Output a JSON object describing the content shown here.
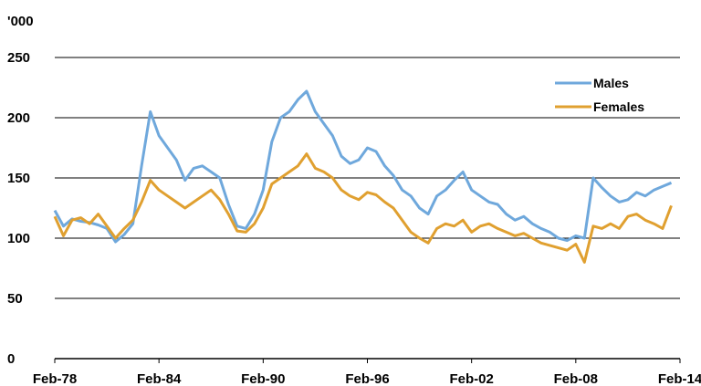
{
  "chart_data": {
    "type": "line",
    "unit_label": "'000",
    "xlabel": "",
    "ylabel": "",
    "ylim": [
      0,
      250
    ],
    "yticks": [
      0,
      50,
      100,
      150,
      200,
      250
    ],
    "xlim": [
      "1978-02",
      "2014-02"
    ],
    "xticks": [
      "Feb-78",
      "Feb-84",
      "Feb-90",
      "Feb-96",
      "Feb-02",
      "Feb-08",
      "Feb-14"
    ],
    "grid": "horizontal",
    "legend_position": "top-right",
    "series": [
      {
        "name": "Males",
        "color": "#6fa8dc",
        "points": [
          [
            "1978-02",
            123
          ],
          [
            "1978-08",
            110
          ],
          [
            "1979-02",
            116
          ],
          [
            "1979-08",
            114
          ],
          [
            "1980-02",
            113
          ],
          [
            "1980-08",
            111
          ],
          [
            "1981-02",
            108
          ],
          [
            "1981-08",
            97
          ],
          [
            "1982-02",
            103
          ],
          [
            "1982-08",
            112
          ],
          [
            "1983-02",
            160
          ],
          [
            "1983-08",
            205
          ],
          [
            "1984-02",
            185
          ],
          [
            "1984-08",
            175
          ],
          [
            "1985-02",
            165
          ],
          [
            "1985-08",
            148
          ],
          [
            "1986-02",
            158
          ],
          [
            "1986-08",
            160
          ],
          [
            "1987-02",
            155
          ],
          [
            "1987-08",
            150
          ],
          [
            "1988-02",
            128
          ],
          [
            "1988-08",
            110
          ],
          [
            "1989-02",
            108
          ],
          [
            "1989-08",
            120
          ],
          [
            "1990-02",
            140
          ],
          [
            "1990-08",
            180
          ],
          [
            "1991-02",
            200
          ],
          [
            "1991-08",
            205
          ],
          [
            "1992-02",
            215
          ],
          [
            "1992-08",
            222
          ],
          [
            "1993-02",
            205
          ],
          [
            "1993-08",
            195
          ],
          [
            "1994-02",
            185
          ],
          [
            "1994-08",
            168
          ],
          [
            "1995-02",
            162
          ],
          [
            "1995-08",
            165
          ],
          [
            "1996-02",
            175
          ],
          [
            "1996-08",
            172
          ],
          [
            "1997-02",
            160
          ],
          [
            "1997-08",
            152
          ],
          [
            "1998-02",
            140
          ],
          [
            "1998-08",
            135
          ],
          [
            "1999-02",
            125
          ],
          [
            "1999-08",
            120
          ],
          [
            "2000-02",
            135
          ],
          [
            "2000-08",
            140
          ],
          [
            "2001-02",
            148
          ],
          [
            "2001-08",
            155
          ],
          [
            "2002-02",
            140
          ],
          [
            "2002-08",
            135
          ],
          [
            "2003-02",
            130
          ],
          [
            "2003-08",
            128
          ],
          [
            "2004-02",
            120
          ],
          [
            "2004-08",
            115
          ],
          [
            "2005-02",
            118
          ],
          [
            "2005-08",
            112
          ],
          [
            "2006-02",
            108
          ],
          [
            "2006-08",
            105
          ],
          [
            "2007-02",
            100
          ],
          [
            "2007-08",
            98
          ],
          [
            "2008-02",
            102
          ],
          [
            "2008-08",
            100
          ],
          [
            "2009-02",
            150
          ],
          [
            "2009-08",
            142
          ],
          [
            "2010-02",
            135
          ],
          [
            "2010-08",
            130
          ],
          [
            "2011-02",
            132
          ],
          [
            "2011-08",
            138
          ],
          [
            "2012-02",
            135
          ],
          [
            "2012-08",
            140
          ],
          [
            "2013-02",
            143
          ],
          [
            "2013-08",
            146
          ]
        ]
      },
      {
        "name": "Females",
        "color": "#e0a030",
        "points": [
          [
            "1978-02",
            118
          ],
          [
            "1978-08",
            102
          ],
          [
            "1979-02",
            115
          ],
          [
            "1979-08",
            117
          ],
          [
            "1980-02",
            112
          ],
          [
            "1980-08",
            120
          ],
          [
            "1981-02",
            110
          ],
          [
            "1981-08",
            100
          ],
          [
            "1982-02",
            108
          ],
          [
            "1982-08",
            115
          ],
          [
            "1983-02",
            130
          ],
          [
            "1983-08",
            148
          ],
          [
            "1984-02",
            140
          ],
          [
            "1984-08",
            135
          ],
          [
            "1985-02",
            130
          ],
          [
            "1985-08",
            125
          ],
          [
            "1986-02",
            130
          ],
          [
            "1986-08",
            135
          ],
          [
            "1987-02",
            140
          ],
          [
            "1987-08",
            132
          ],
          [
            "1988-02",
            120
          ],
          [
            "1988-08",
            106
          ],
          [
            "1989-02",
            105
          ],
          [
            "1989-08",
            112
          ],
          [
            "1990-02",
            125
          ],
          [
            "1990-08",
            145
          ],
          [
            "1991-02",
            150
          ],
          [
            "1991-08",
            155
          ],
          [
            "1992-02",
            160
          ],
          [
            "1992-08",
            170
          ],
          [
            "1993-02",
            158
          ],
          [
            "1993-08",
            155
          ],
          [
            "1994-02",
            150
          ],
          [
            "1994-08",
            140
          ],
          [
            "1995-02",
            135
          ],
          [
            "1995-08",
            132
          ],
          [
            "1996-02",
            138
          ],
          [
            "1996-08",
            136
          ],
          [
            "1997-02",
            130
          ],
          [
            "1997-08",
            125
          ],
          [
            "1998-02",
            115
          ],
          [
            "1998-08",
            105
          ],
          [
            "1999-02",
            100
          ],
          [
            "1999-08",
            96
          ],
          [
            "2000-02",
            108
          ],
          [
            "2000-08",
            112
          ],
          [
            "2001-02",
            110
          ],
          [
            "2001-08",
            115
          ],
          [
            "2002-02",
            105
          ],
          [
            "2002-08",
            110
          ],
          [
            "2003-02",
            112
          ],
          [
            "2003-08",
            108
          ],
          [
            "2004-02",
            105
          ],
          [
            "2004-08",
            102
          ],
          [
            "2005-02",
            104
          ],
          [
            "2005-08",
            100
          ],
          [
            "2006-02",
            96
          ],
          [
            "2006-08",
            94
          ],
          [
            "2007-02",
            92
          ],
          [
            "2007-08",
            90
          ],
          [
            "2008-02",
            95
          ],
          [
            "2008-08",
            80
          ],
          [
            "2009-02",
            110
          ],
          [
            "2009-08",
            108
          ],
          [
            "2010-02",
            112
          ],
          [
            "2010-08",
            108
          ],
          [
            "2011-02",
            118
          ],
          [
            "2011-08",
            120
          ],
          [
            "2012-02",
            115
          ],
          [
            "2012-08",
            112
          ],
          [
            "2013-02",
            108
          ],
          [
            "2013-08",
            127
          ]
        ]
      }
    ]
  }
}
